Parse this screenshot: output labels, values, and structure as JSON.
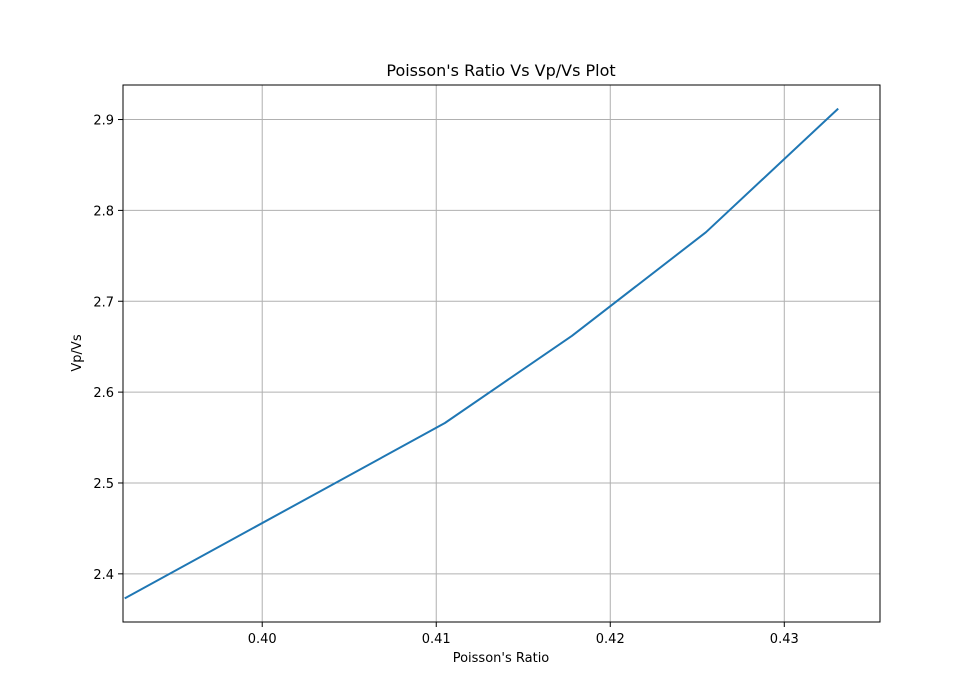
{
  "chart_data": {
    "type": "line",
    "title": "Poisson's Ratio Vs Vp/Vs Plot",
    "xlabel": "Poisson's Ratio",
    "ylabel": "Vp/Vs",
    "xlim": [
      0.392,
      0.4355
    ],
    "ylim": [
      2.347,
      2.938
    ],
    "xticks": [
      0.4,
      0.41,
      0.42,
      0.43
    ],
    "xtick_labels": [
      "0.40",
      "0.41",
      "0.42",
      "0.43"
    ],
    "yticks": [
      2.4,
      2.5,
      2.6,
      2.7,
      2.8,
      2.9
    ],
    "ytick_labels": [
      "2.4",
      "2.5",
      "2.6",
      "2.7",
      "2.8",
      "2.9"
    ],
    "grid": true,
    "series": [
      {
        "color": "#1f77b4",
        "x": [
          0.3921,
          0.4105,
          0.4178,
          0.4255,
          0.4331
        ],
        "y": [
          2.373,
          2.566,
          2.662,
          2.776,
          2.912
        ]
      }
    ]
  }
}
